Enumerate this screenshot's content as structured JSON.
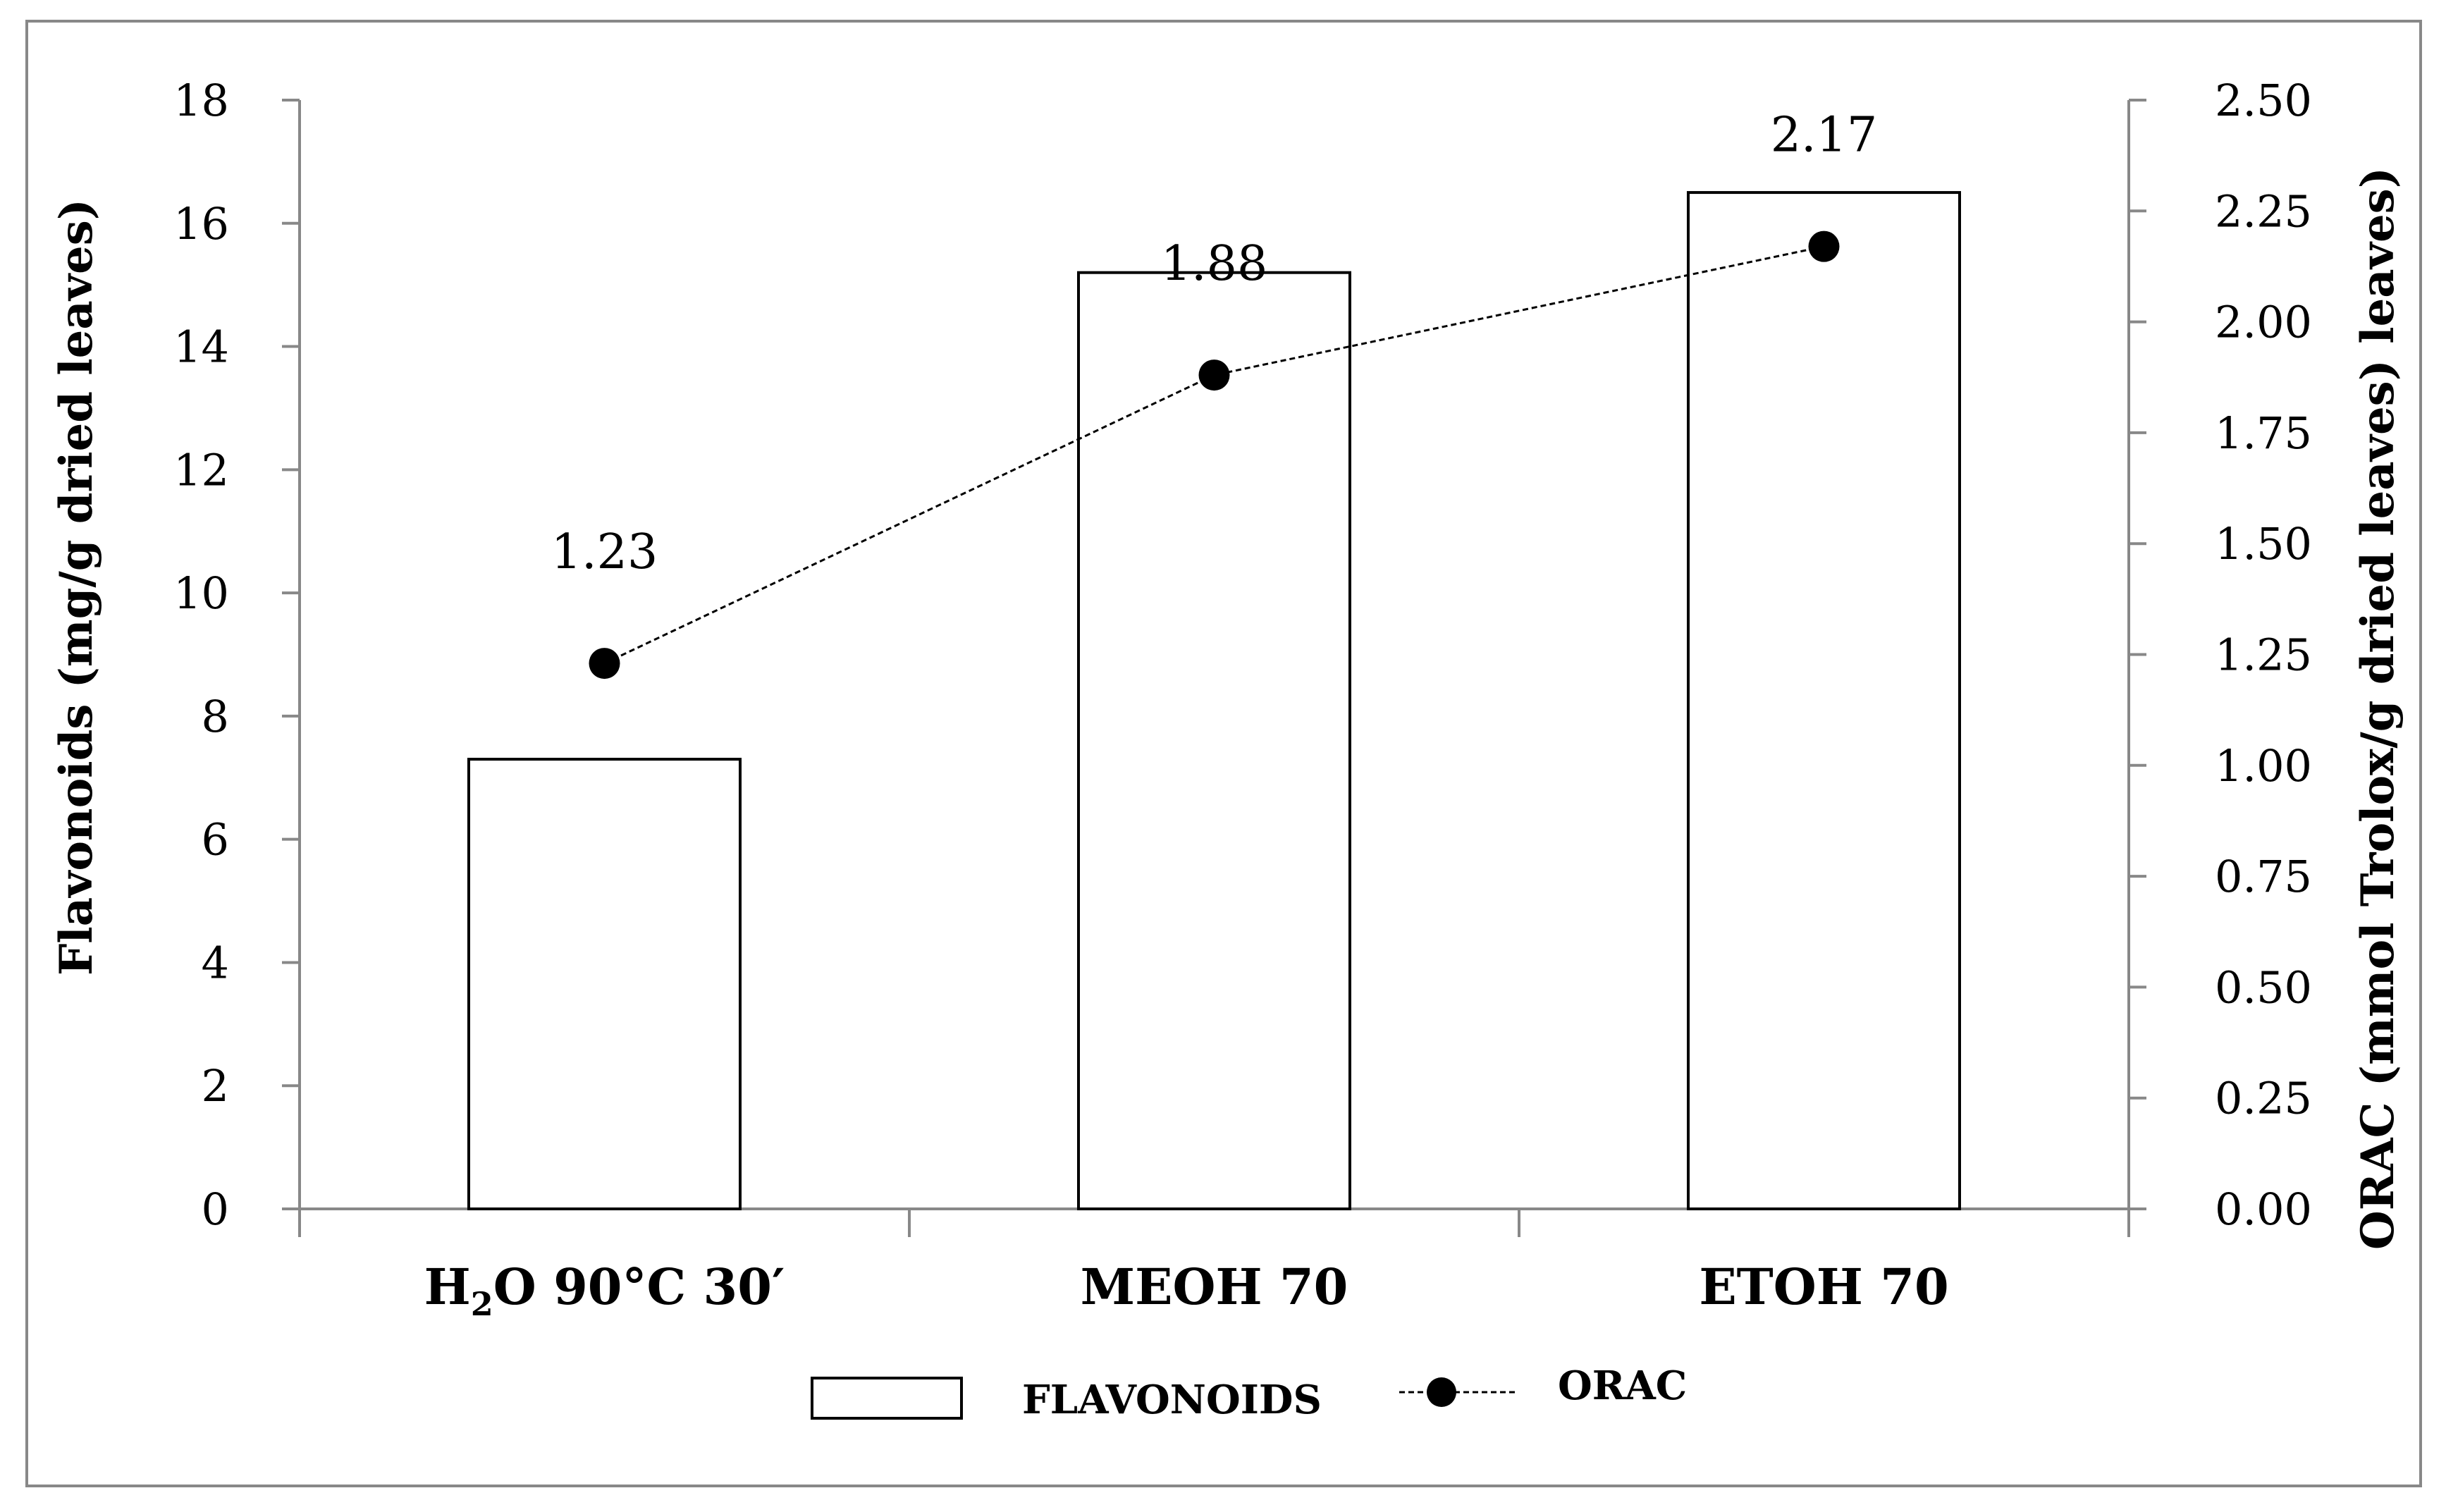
{
  "chart_data": {
    "type": "bar+line",
    "categories": [
      {
        "main": "H",
        "sub": "2",
        "rest": "O 90°C 30′"
      },
      {
        "main": "MEOH 70",
        "sub": "",
        "rest": ""
      },
      {
        "main": "ETOH 70",
        "sub": "",
        "rest": ""
      }
    ],
    "series": [
      {
        "name": "FLAVONOIDS",
        "type": "bar",
        "axis": "left",
        "values": [
          7.3,
          15.2,
          16.5
        ]
      },
      {
        "name": "ORAC",
        "type": "line",
        "axis": "right",
        "values": [
          1.23,
          1.88,
          2.17
        ],
        "labels": [
          "1.23",
          "1.88",
          "2.17"
        ]
      }
    ],
    "y_left": {
      "label": "Flavonoids (mg/g dried leaves)",
      "range": [
        0,
        18
      ],
      "ticks": [
        "0",
        "2",
        "4",
        "6",
        "8",
        "10",
        "12",
        "14",
        "16",
        "18"
      ]
    },
    "y_right": {
      "label": "ORAC (mmol Trolox/g dried leaves) leaves)",
      "range": [
        0,
        2.5
      ],
      "ticks": [
        "0.00",
        "0.25",
        "0.50",
        "0.75",
        "1.00",
        "1.25",
        "1.50",
        "1.75",
        "2.00",
        "2.25",
        "2.50"
      ]
    },
    "legend": {
      "position": "bottom-center",
      "items": [
        "FLAVONOIDS",
        "ORAC"
      ]
    },
    "colors": {
      "bar_fill": "#ffffff",
      "stroke": "#000000",
      "axis": "#888888",
      "marker": "#000000"
    }
  }
}
